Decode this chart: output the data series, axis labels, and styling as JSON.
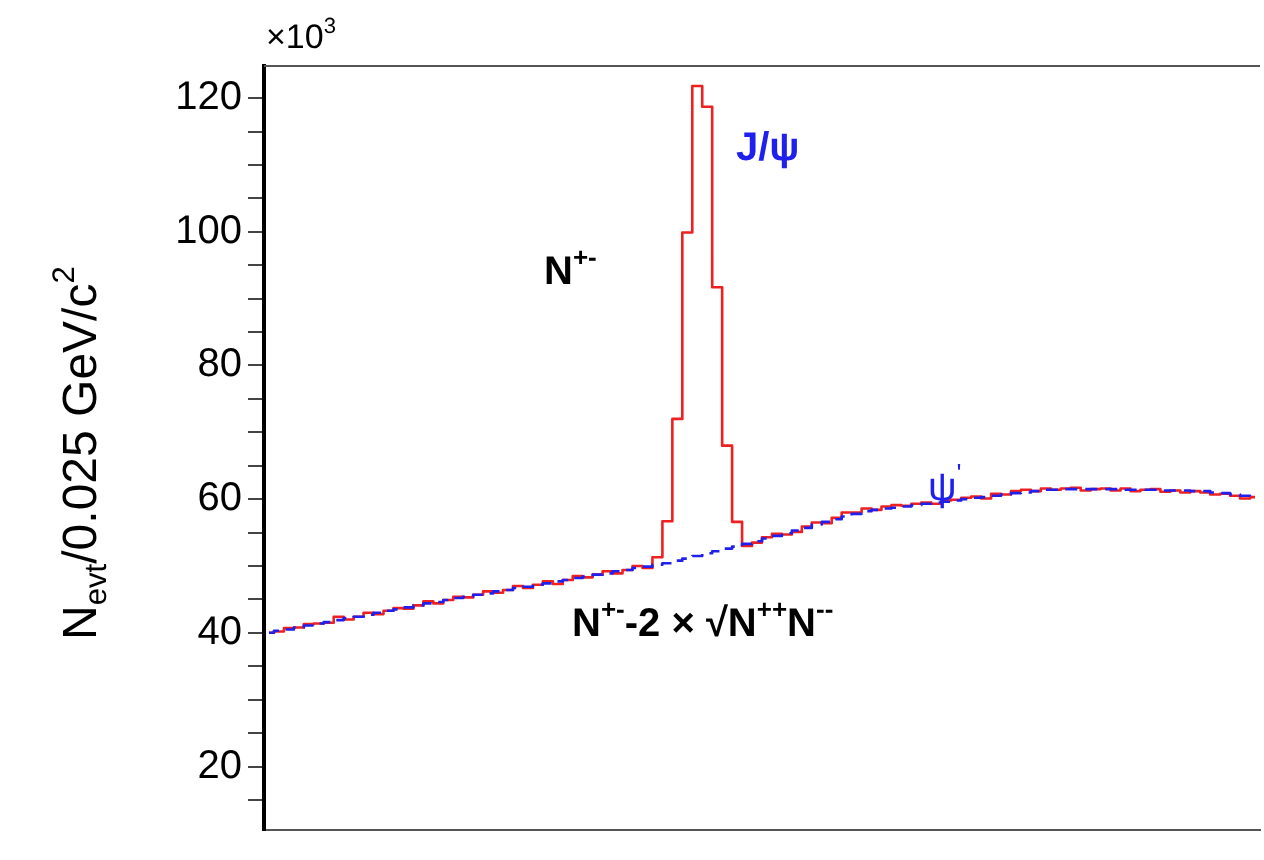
{
  "chart_data": {
    "type": "step",
    "ylabel": "N$_{evt}$/0.025 GeV/c$^{2}$",
    "annotations": [
      "×10$^{3}$",
      "N$^{+-}$",
      "J/ψ",
      "ψ$^{'}$",
      "N$^{+-}$-2 × √N$^{++}$N$^{--}$"
    ],
    "categories": [
      null,
      null,
      null,
      null,
      null,
      null,
      null,
      null,
      null,
      null,
      null,
      null,
      null,
      null,
      null,
      null,
      null,
      null,
      null,
      null,
      null,
      null,
      null,
      null,
      null,
      null,
      null,
      null,
      null,
      null,
      null,
      null,
      null,
      null,
      null,
      null,
      null,
      null,
      null,
      null,
      null,
      null,
      null,
      null,
      null,
      null,
      null,
      null,
      null,
      null,
      null,
      null,
      null,
      null,
      null,
      null,
      null,
      null,
      null,
      null,
      null,
      null,
      null,
      null,
      null,
      null,
      null,
      null,
      null,
      null,
      null,
      null,
      null,
      null,
      null,
      null,
      null,
      null,
      null,
      null,
      null,
      null,
      null,
      null,
      null,
      null,
      null,
      null,
      null,
      null,
      null,
      null,
      null,
      null,
      null,
      null,
      null,
      null,
      null,
      null
    ],
    "series": [
      {
        "color": "#ee2020",
        "line_style": "solid",
        "values": [
          40.0,
          40.2,
          40.7,
          40.8,
          41.3,
          41.4,
          41.5,
          42.4,
          42.0,
          42.4,
          43.0,
          42.8,
          43.3,
          43.7,
          43.6,
          44.1,
          44.7,
          44.4,
          44.9,
          45.4,
          45.3,
          45.7,
          46.2,
          46.0,
          46.4,
          47.0,
          46.7,
          47.2,
          47.7,
          47.3,
          47.9,
          48.5,
          48.3,
          48.7,
          49.2,
          48.9,
          49.4,
          50.0,
          49.7,
          51.3,
          56.7,
          72.0,
          99.9,
          121.8,
          118.7,
          91.7,
          68.0,
          56.6,
          53.0,
          53.5,
          54.3,
          54.8,
          54.7,
          55.1,
          55.9,
          56.5,
          56.4,
          57.2,
          58.0,
          58.0,
          58.6,
          58.4,
          58.9,
          59.1,
          59.0,
          59.3,
          59.5,
          59.3,
          59.8,
          59.9,
          60.2,
          60.4,
          60.1,
          60.8,
          60.7,
          61.2,
          61.4,
          61.2,
          61.6,
          61.4,
          61.6,
          61.7,
          61.3,
          61.5,
          61.6,
          61.3,
          61.6,
          61.2,
          61.4,
          61.5,
          61.1,
          61.3,
          61.0,
          61.2,
          61.0,
          60.7,
          60.8,
          60.5,
          60.1,
          60.3
        ]
      },
      {
        "color": "#2020ee",
        "line_style": "dashed",
        "values": [
          40.0,
          40.3,
          40.5,
          40.8,
          41.1,
          41.4,
          41.6,
          41.9,
          42.2,
          42.4,
          42.7,
          43.0,
          43.3,
          43.5,
          43.8,
          44.1,
          44.4,
          44.6,
          44.9,
          45.2,
          45.4,
          45.7,
          45.9,
          46.2,
          46.4,
          46.7,
          46.9,
          47.2,
          47.4,
          47.7,
          47.9,
          48.2,
          48.4,
          48.7,
          48.9,
          49.2,
          49.4,
          49.7,
          49.9,
          50.2,
          50.4,
          50.8,
          51.1,
          51.5,
          51.9,
          52.2,
          52.6,
          52.9,
          53.3,
          53.7,
          54.1,
          54.5,
          54.9,
          55.3,
          55.7,
          56.2,
          56.6,
          57.0,
          57.4,
          57.8,
          58.2,
          58.4,
          58.6,
          58.7,
          58.9,
          59.1,
          59.3,
          59.5,
          59.6,
          59.8,
          60.0,
          60.2,
          60.3,
          60.5,
          60.7,
          60.9,
          61.0,
          61.2,
          61.4,
          61.4,
          61.5,
          61.5,
          61.5,
          61.5,
          61.5,
          61.5,
          61.4,
          61.4,
          61.4,
          61.4,
          61.3,
          61.3,
          61.3,
          61.2,
          61.2,
          61.0,
          60.9,
          60.7,
          60.5,
          60.3
        ]
      }
    ],
    "ylim": [
      10.5,
      124.8
    ],
    "yticks": [
      {
        "value": 15,
        "label": null
      },
      20,
      {
        "value": 25,
        "label": null
      },
      {
        "value": 30,
        "label": null
      },
      {
        "value": 35,
        "label": null
      },
      40,
      {
        "value": 45,
        "label": null
      },
      {
        "value": 50,
        "label": null
      },
      {
        "value": 55,
        "label": null
      },
      60,
      {
        "value": 65,
        "label": null
      },
      {
        "value": 70,
        "label": null
      },
      {
        "value": 75,
        "label": null
      },
      80,
      {
        "value": 85,
        "label": null
      },
      {
        "value": 90,
        "label": null
      },
      {
        "value": 95,
        "label": null
      },
      100,
      {
        "value": 105,
        "label": null
      },
      {
        "value": 110,
        "label": null
      },
      {
        "value": 115,
        "label": null
      },
      120
    ],
    "tick_labels": "y",
    "grid": false,
    "legend": false,
    "marker": "none"
  }
}
